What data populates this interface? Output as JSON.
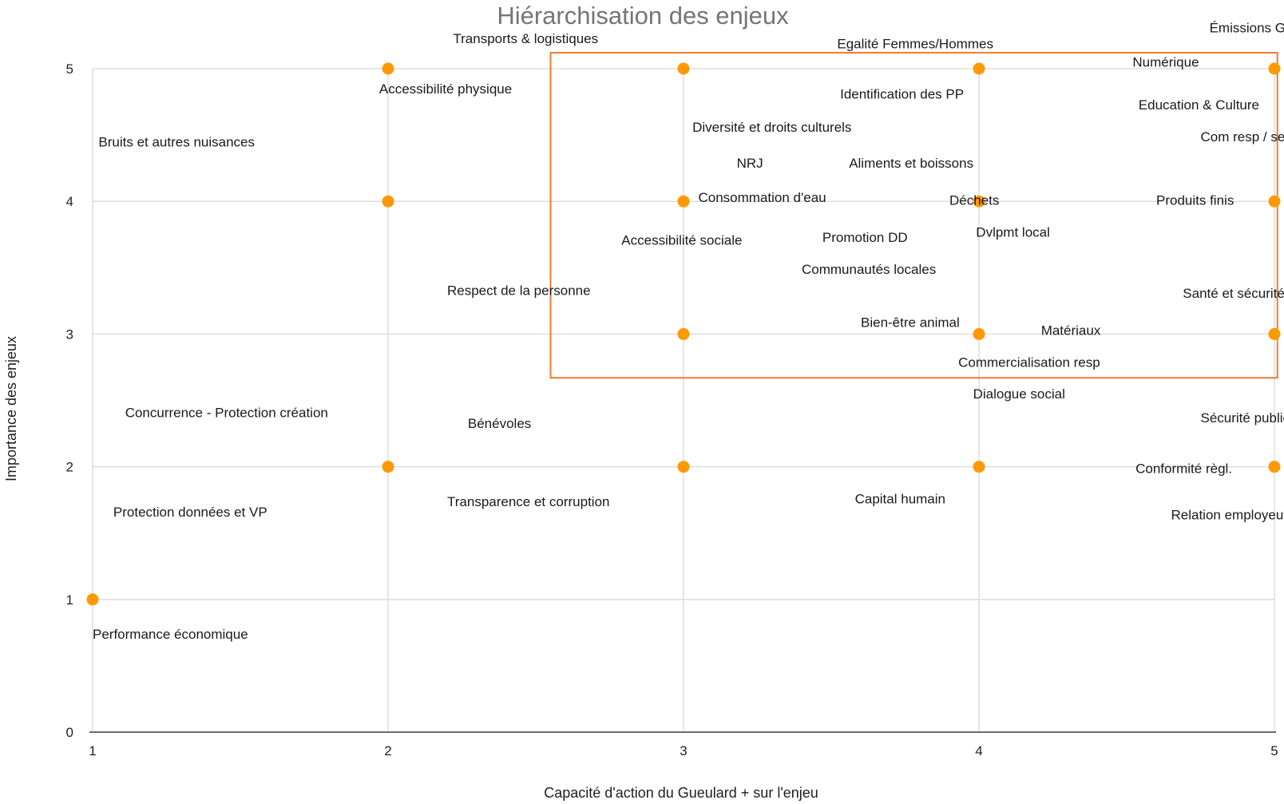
{
  "chart_data": {
    "type": "scatter",
    "title": "Hiérarchisation des enjeux",
    "xlabel": "Capacité d'action du Gueulard + sur l'enjeu",
    "ylabel": "Importance des enjeux",
    "xlim": [
      1,
      5
    ],
    "ylim": [
      0,
      5
    ],
    "x_ticks": [
      "1",
      "2",
      "3",
      "4",
      "5"
    ],
    "y_ticks": [
      "0",
      "1",
      "2",
      "3",
      "4",
      "5"
    ],
    "grid": true,
    "legend": "none",
    "marker_color": "#ff9900",
    "highlight_color": "#ed7d31",
    "highlight_region": {
      "x": [
        2.55,
        5.01
      ],
      "y": [
        2.67,
        5.12
      ]
    },
    "points": [
      {
        "x": 1,
        "y": 1
      },
      {
        "x": 2,
        "y": 2
      },
      {
        "x": 2,
        "y": 4
      },
      {
        "x": 2,
        "y": 5
      },
      {
        "x": 3,
        "y": 2
      },
      {
        "x": 3,
        "y": 3
      },
      {
        "x": 3,
        "y": 4
      },
      {
        "x": 3,
        "y": 5
      },
      {
        "x": 4,
        "y": 2
      },
      {
        "x": 4,
        "y": 3
      },
      {
        "x": 4,
        "y": 4
      },
      {
        "x": 4,
        "y": 5
      },
      {
        "x": 5,
        "y": 2
      },
      {
        "x": 5,
        "y": 3
      },
      {
        "x": 5,
        "y": 4
      },
      {
        "x": 5,
        "y": 5
      }
    ],
    "annotations": [
      {
        "text": "Transports & logistiques",
        "x": 2.22,
        "y": 5.23
      },
      {
        "text": "Egalité Femmes/Hommes",
        "x": 3.52,
        "y": 5.19
      },
      {
        "text": "Émissions GES",
        "x": 4.78,
        "y": 5.31
      },
      {
        "text": "Numérique",
        "x": 4.52,
        "y": 5.05
      },
      {
        "text": "Accessibilité physique",
        "x": 1.97,
        "y": 4.85
      },
      {
        "text": "Identification des PP",
        "x": 3.53,
        "y": 4.81
      },
      {
        "text": "Education & Culture",
        "x": 4.54,
        "y": 4.73
      },
      {
        "text": "Diversité et droits culturels",
        "x": 3.03,
        "y": 4.56
      },
      {
        "text": "Com resp / sensib",
        "x": 4.75,
        "y": 4.49
      },
      {
        "text": "Bruits et autres nuisances",
        "x": 1.02,
        "y": 4.45
      },
      {
        "text": "NRJ",
        "x": 3.18,
        "y": 4.29
      },
      {
        "text": "Aliments et boissons",
        "x": 3.56,
        "y": 4.29
      },
      {
        "text": "Consommation d'eau",
        "x": 3.05,
        "y": 4.03
      },
      {
        "text": "Déchets",
        "x": 3.9,
        "y": 4.01
      },
      {
        "text": "Produits finis",
        "x": 4.6,
        "y": 4.01
      },
      {
        "text": "Dvlpmt local",
        "x": 3.99,
        "y": 3.77
      },
      {
        "text": "Accessibilité sociale",
        "x": 2.79,
        "y": 3.71
      },
      {
        "text": "Promotion DD",
        "x": 3.47,
        "y": 3.73
      },
      {
        "text": "Communautés locales",
        "x": 3.4,
        "y": 3.49
      },
      {
        "text": "Respect de la personne",
        "x": 2.2,
        "y": 3.33
      },
      {
        "text": "Santé et sécurité",
        "x": 4.69,
        "y": 3.31
      },
      {
        "text": "Bien-être animal",
        "x": 3.6,
        "y": 3.09
      },
      {
        "text": "Matériaux",
        "x": 4.21,
        "y": 3.03
      },
      {
        "text": "Commercialisation resp",
        "x": 3.93,
        "y": 2.79
      },
      {
        "text": "Dialogue social",
        "x": 3.98,
        "y": 2.55
      },
      {
        "text": "Sécurité public",
        "x": 4.75,
        "y": 2.37
      },
      {
        "text": "Concurrence - Protection création",
        "x": 1.11,
        "y": 2.41
      },
      {
        "text": "Bénévoles",
        "x": 2.27,
        "y": 2.33
      },
      {
        "text": "Conformité règl.",
        "x": 4.53,
        "y": 1.99
      },
      {
        "text": "Transparence et corruption",
        "x": 2.2,
        "y": 1.74
      },
      {
        "text": "Capital humain",
        "x": 3.58,
        "y": 1.76
      },
      {
        "text": "Relation employeur/é",
        "x": 4.65,
        "y": 1.64
      },
      {
        "text": "Protection données et VP",
        "x": 1.07,
        "y": 1.66
      },
      {
        "text": "Performance économique",
        "x": 1.0,
        "y": 0.74
      }
    ]
  }
}
